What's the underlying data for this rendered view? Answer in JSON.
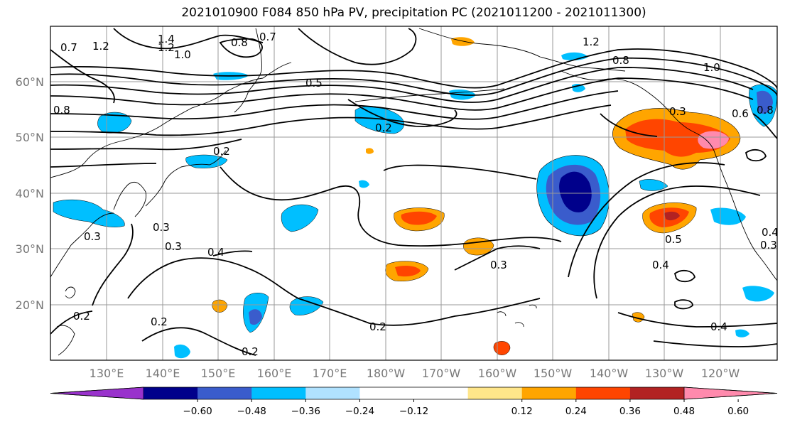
{
  "title": "2021010900 F084 850 hPa PV, precipitation PC (2021011200 - 2021011300)",
  "latitude_labels": [
    "60°N",
    "50°N",
    "40°N",
    "30°N",
    "20°N"
  ],
  "longitude_labels": [
    "130°E",
    "140°E",
    "150°E",
    "160°E",
    "170°E",
    "180°W",
    "170°W",
    "160°W",
    "150°W",
    "140°W",
    "130°W",
    "120°W"
  ],
  "colorbar": {
    "colors": [
      "#9932cc",
      "#00008b",
      "#3a5ccc",
      "#00bfff",
      "#b0e2ff",
      "#ffffff",
      "#ffffff",
      "#ffe68a",
      "#ffa500",
      "#ff4500",
      "#b22222",
      "#ff8aad"
    ],
    "tick_labels": [
      "−0.60",
      "−0.48",
      "−0.36",
      "−0.24",
      "−0.12",
      "0.12",
      "0.24",
      "0.36",
      "0.48",
      "0.60"
    ]
  },
  "contour_labels": [
    "1.4",
    "1.2",
    "1.0",
    "0.8",
    "0.7",
    "0.5",
    "1.2",
    "0.7",
    "0.8",
    "1.2",
    "1.0",
    "0.8",
    "0.6",
    "0.8",
    "0.2",
    "0.2",
    "0.3",
    "0.3",
    "0.3",
    "0.4",
    "0.2",
    "0.2",
    "0.2",
    "0.3",
    "0.2",
    "0.3",
    "0.5",
    "0.4",
    "0.4",
    "0.4",
    "0.3"
  ],
  "colors": {
    "contour": "#000000",
    "grid": "#999999",
    "coast": "#000000"
  }
}
